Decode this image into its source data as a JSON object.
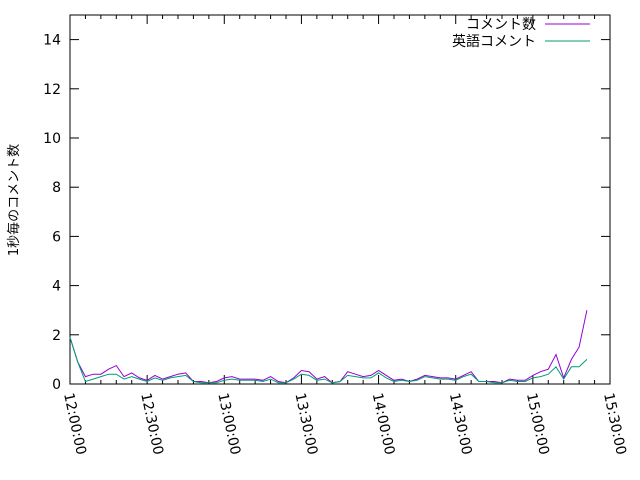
{
  "chart_data": {
    "type": "line",
    "title": "",
    "xlabel": "",
    "ylabel": "1秒毎のコメント数",
    "ylim": [
      0,
      15
    ],
    "xlim": [
      "12:00:00",
      "15:30:00"
    ],
    "yticks": [
      "0",
      "2",
      "4",
      "6",
      "8",
      "10",
      "12",
      "14"
    ],
    "xticks": [
      "12:00:00",
      "12:30:00",
      "13:00:00",
      "13:30:00",
      "14:00:00",
      "14:30:00",
      "15:00:00",
      "15:30:00"
    ],
    "grid": false,
    "legend": "top-right",
    "x": [
      "12:00:00",
      "12:03:00",
      "12:06:00",
      "12:09:00",
      "12:12:00",
      "12:15:00",
      "12:18:00",
      "12:21:00",
      "12:24:00",
      "12:27:00",
      "12:30:00",
      "12:33:00",
      "12:36:00",
      "12:39:00",
      "12:42:00",
      "12:45:00",
      "12:48:00",
      "12:51:00",
      "12:54:00",
      "12:57:00",
      "13:00:00",
      "13:03:00",
      "13:06:00",
      "13:09:00",
      "13:12:00",
      "13:15:00",
      "13:18:00",
      "13:21:00",
      "13:24:00",
      "13:27:00",
      "13:30:00",
      "13:33:00",
      "13:36:00",
      "13:39:00",
      "13:42:00",
      "13:45:00",
      "13:48:00",
      "13:51:00",
      "13:54:00",
      "13:57:00",
      "14:00:00",
      "14:03:00",
      "14:06:00",
      "14:09:00",
      "14:12:00",
      "14:15:00",
      "14:18:00",
      "14:21:00",
      "14:24:00",
      "14:27:00",
      "14:30:00",
      "14:33:00",
      "14:36:00",
      "14:39:00",
      "14:42:00",
      "14:45:00",
      "14:48:00",
      "14:51:00",
      "14:54:00",
      "14:57:00",
      "15:00:00",
      "15:03:00",
      "15:06:00",
      "15:09:00",
      "15:12:00",
      "15:15:00",
      "15:18:00",
      "15:21:00"
    ],
    "series": [
      {
        "name": "コメント数",
        "color": "#9400d3",
        "values": [
          1.9,
          0.9,
          0.3,
          0.4,
          0.4,
          0.6,
          0.75,
          0.3,
          0.45,
          0.25,
          0.15,
          0.35,
          0.2,
          0.3,
          0.4,
          0.45,
          0.1,
          0.1,
          0.05,
          0.1,
          0.25,
          0.3,
          0.2,
          0.2,
          0.2,
          0.15,
          0.3,
          0.1,
          0.05,
          0.25,
          0.55,
          0.5,
          0.2,
          0.3,
          0.05,
          0.1,
          0.5,
          0.4,
          0.3,
          0.35,
          0.55,
          0.35,
          0.15,
          0.2,
          0.1,
          0.2,
          0.35,
          0.3,
          0.25,
          0.25,
          0.2,
          0.35,
          0.5,
          0.1,
          0.1,
          0.1,
          0.05,
          0.2,
          0.15,
          0.15,
          0.35,
          0.5,
          0.6,
          1.2,
          0.25,
          1.0,
          1.5,
          3.0
        ]
      },
      {
        "name": "英語コメント",
        "color": "#009e73",
        "values": [
          1.9,
          0.9,
          0.1,
          0.2,
          0.3,
          0.4,
          0.4,
          0.2,
          0.3,
          0.2,
          0.1,
          0.25,
          0.15,
          0.25,
          0.3,
          0.35,
          0.1,
          0.05,
          0.05,
          0.05,
          0.15,
          0.2,
          0.15,
          0.15,
          0.15,
          0.1,
          0.2,
          0.05,
          0.05,
          0.2,
          0.4,
          0.35,
          0.15,
          0.2,
          0.05,
          0.1,
          0.35,
          0.3,
          0.25,
          0.25,
          0.45,
          0.25,
          0.1,
          0.15,
          0.1,
          0.15,
          0.3,
          0.25,
          0.2,
          0.2,
          0.15,
          0.3,
          0.4,
          0.1,
          0.1,
          0.05,
          0.05,
          0.15,
          0.1,
          0.1,
          0.25,
          0.3,
          0.4,
          0.7,
          0.2,
          0.7,
          0.7,
          1.0
        ]
      }
    ]
  }
}
